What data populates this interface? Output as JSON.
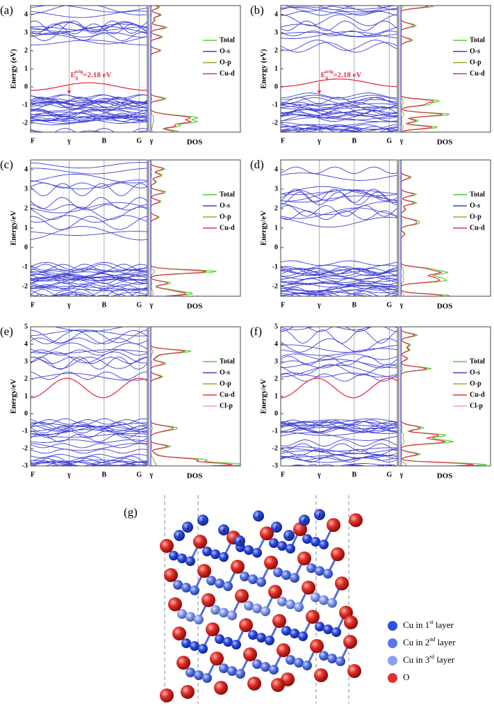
{
  "panels": [
    {
      "label": "(a)",
      "y_axis_label": "Energy (eV)",
      "ylim": [
        -2.5,
        4.5
      ],
      "yticks": [
        -2,
        -1,
        0,
        1,
        2,
        3,
        4
      ],
      "kpoints": [
        "F",
        "γ",
        "B",
        "G",
        "γ"
      ],
      "dos_label": "DOS",
      "legend": [
        {
          "name": "Total",
          "color": "#4fd12e"
        },
        {
          "name": "O-s",
          "color": "#3f3fd9"
        },
        {
          "name": "O-p",
          "color": "#9aaa2a"
        },
        {
          "name": "Cu-d",
          "color": "#e8304a"
        }
      ],
      "gap_annotation": {
        "symbol": "E",
        "sub": "g",
        "sup": "orig",
        "text": "=2.18 eV"
      }
    },
    {
      "label": "(b)",
      "y_axis_label": "Energy (eV)",
      "ylim": [
        -2.5,
        4.5
      ],
      "yticks": [
        -2,
        -1,
        0,
        1,
        2,
        3,
        4
      ],
      "kpoints": [
        "F",
        "γ",
        "B",
        "G",
        "γ"
      ],
      "dos_label": "DOS",
      "legend": [
        {
          "name": "Total",
          "color": "#4fd12e"
        },
        {
          "name": "O-s",
          "color": "#3f3fd9"
        },
        {
          "name": "O-p",
          "color": "#9aaa2a"
        },
        {
          "name": "Cu-d",
          "color": "#e8304a"
        }
      ],
      "gap_annotation": {
        "symbol": "E",
        "sub": "g",
        "sup": "orig",
        "text": "=2.18 eV"
      }
    },
    {
      "label": "(c)",
      "y_axis_label": "Energy/eV",
      "ylim": [
        -2.5,
        4.5
      ],
      "yticks": [
        -2,
        -1,
        0,
        1,
        2,
        3,
        4
      ],
      "kpoints": [
        "F",
        "γ",
        "B",
        "G",
        "γ"
      ],
      "dos_label": "DOS",
      "legend": [
        {
          "name": "Total",
          "color": "#4fd12e"
        },
        {
          "name": "O-s",
          "color": "#3f3fd9"
        },
        {
          "name": "O-p",
          "color": "#9aaa2a"
        },
        {
          "name": "Cu-d",
          "color": "#e8304a"
        }
      ]
    },
    {
      "label": "(d)",
      "y_axis_label": "Energy/eV",
      "ylim": [
        -2.5,
        4.5
      ],
      "yticks": [
        -2,
        -1,
        0,
        1,
        2,
        3,
        4
      ],
      "kpoints": [
        "F",
        "γ",
        "B",
        "G",
        "γ"
      ],
      "dos_label": "DOS",
      "legend": [
        {
          "name": "Total",
          "color": "#4fd12e"
        },
        {
          "name": "O-s",
          "color": "#3f3fd9"
        },
        {
          "name": "O-p",
          "color": "#9aaa2a"
        },
        {
          "name": "Cu-d",
          "color": "#e8304a"
        }
      ]
    },
    {
      "label": "(e)",
      "y_axis_label": "Energy/eV",
      "ylim": [
        -3,
        5
      ],
      "yticks": [
        -3,
        -2,
        -1,
        0,
        1,
        2,
        3,
        4,
        5
      ],
      "kpoints": [
        "F",
        "γ",
        "B",
        "G",
        "γ"
      ],
      "dos_label": "DOS",
      "legend": [
        {
          "name": "Total",
          "color": "#4fd12e"
        },
        {
          "name": "O-s",
          "color": "#3f3fd9"
        },
        {
          "name": "O-p",
          "color": "#9aaa2a"
        },
        {
          "name": "Cu-d",
          "color": "#e8304a"
        },
        {
          "name": "Cl-p",
          "color": "#f4a0b0"
        }
      ]
    },
    {
      "label": "(f)",
      "y_axis_label": "Energy/eV",
      "ylim": [
        -3,
        5
      ],
      "yticks": [
        -3,
        -2,
        -1,
        0,
        1,
        2,
        3,
        4,
        5
      ],
      "kpoints": [
        "F",
        "γ",
        "B",
        "G",
        "γ"
      ],
      "dos_label": "DOS",
      "legend": [
        {
          "name": "Total",
          "color": "#4fd12e"
        },
        {
          "name": "O-s",
          "color": "#3f3fd9"
        },
        {
          "name": "O-p",
          "color": "#9aaa2a"
        },
        {
          "name": "Cu-d",
          "color": "#e8304a"
        },
        {
          "name": "Cl-p",
          "color": "#f4a0b0"
        }
      ]
    }
  ],
  "structure": {
    "label": "(g)",
    "atom_labels": [
      "1",
      "2",
      "3",
      "4"
    ],
    "legend": [
      {
        "prefix": "Cu in 1",
        "sup": "st",
        "suffix": " layer",
        "color": "#2f4fe0"
      },
      {
        "prefix": "Cu in 2",
        "sup": "nd",
        "suffix": " layer",
        "color": "#5a78e8"
      },
      {
        "prefix": "Cu in 3",
        "sup": "rd",
        "suffix": " layer",
        "color": "#8aa0ee"
      },
      {
        "prefix": "O",
        "color": "#e0302a"
      }
    ]
  }
}
